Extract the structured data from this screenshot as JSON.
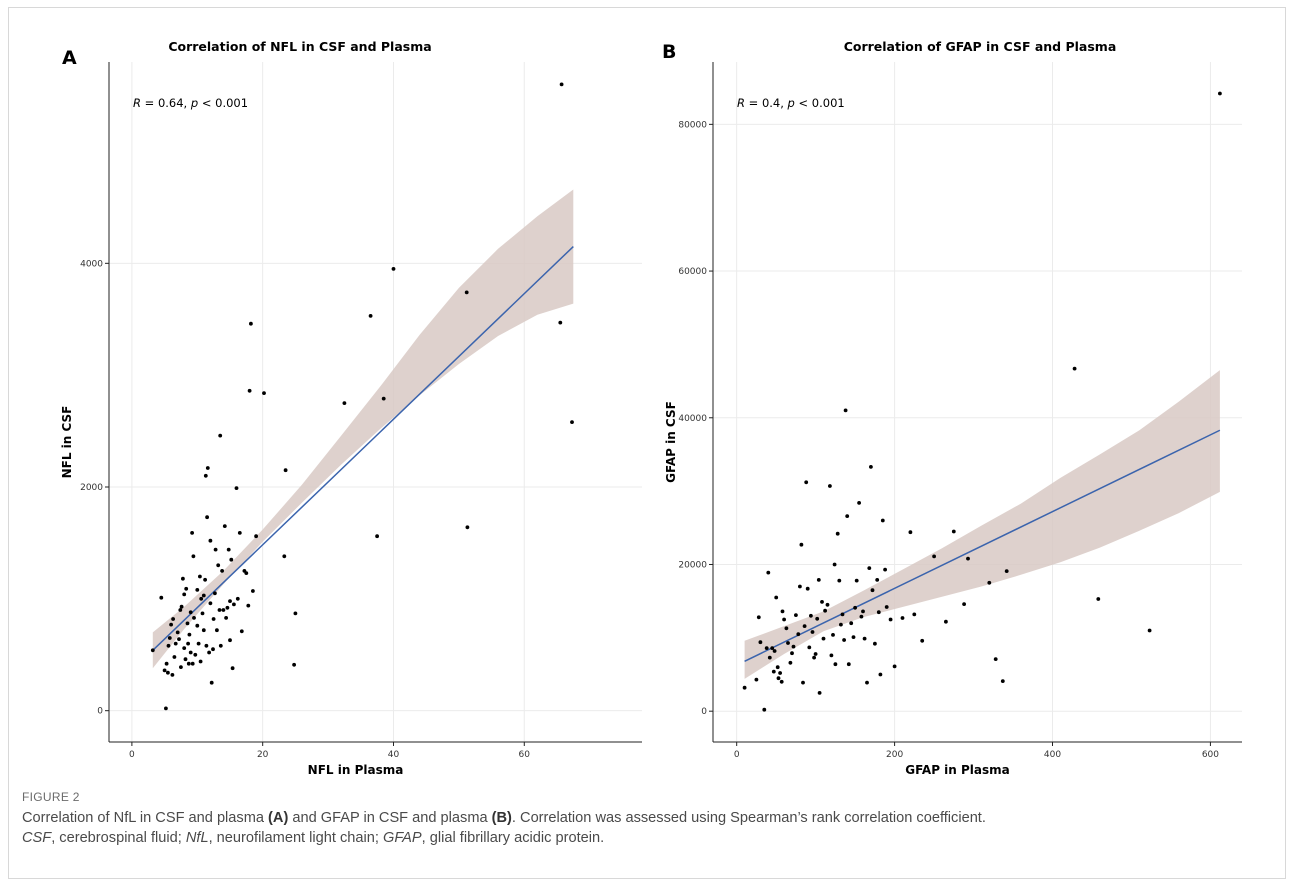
{
  "chart_data": [
    {
      "panel": "A",
      "type": "scatter",
      "title": "Correlation of NFL in CSF and Plasma",
      "xlabel": "NFL in Plasma",
      "ylabel": "NFL in CSF",
      "xlim": [
        -3.5,
        78
      ],
      "ylim": [
        -280,
        5800
      ],
      "xticks": [
        0,
        20,
        40,
        60
      ],
      "yticks": [
        0,
        2000,
        4000
      ],
      "annotation": {
        "R": "0.64",
        "p": "0.001"
      },
      "fit": {
        "x": [
          3.2,
          67.5
        ],
        "y": [
          540,
          4150
        ]
      },
      "band": {
        "x": [
          3.2,
          8,
          14,
          20,
          26,
          32,
          38,
          44,
          50,
          56,
          62,
          67.5
        ],
        "lower": [
          380,
          730,
          1130,
          1510,
          1860,
          2200,
          2520,
          2820,
          3100,
          3350,
          3540,
          3640
        ],
        "upper": [
          700,
          930,
          1250,
          1620,
          2020,
          2460,
          2900,
          3360,
          3780,
          4130,
          4420,
          4660
        ]
      },
      "points": [
        [
          3.2,
          540
        ],
        [
          4.5,
          1010
        ],
        [
          5,
          360
        ],
        [
          5.2,
          20
        ],
        [
          5.3,
          420
        ],
        [
          5.5,
          340
        ],
        [
          5.6,
          580
        ],
        [
          5.8,
          650
        ],
        [
          6,
          770
        ],
        [
          6.2,
          320
        ],
        [
          6.3,
          820
        ],
        [
          6.5,
          480
        ],
        [
          6.7,
          600
        ],
        [
          7,
          700
        ],
        [
          7.2,
          640
        ],
        [
          7.4,
          900
        ],
        [
          7.5,
          390
        ],
        [
          7.6,
          930
        ],
        [
          7.8,
          1180
        ],
        [
          8,
          560
        ],
        [
          8,
          1040
        ],
        [
          8.2,
          460
        ],
        [
          8.3,
          1090
        ],
        [
          8.5,
          780
        ],
        [
          8.6,
          600
        ],
        [
          8.7,
          420
        ],
        [
          8.8,
          680
        ],
        [
          9,
          520
        ],
        [
          9,
          880
        ],
        [
          9.2,
          1590
        ],
        [
          9.3,
          420
        ],
        [
          9.4,
          1380
        ],
        [
          9.5,
          830
        ],
        [
          9.7,
          500
        ],
        [
          10,
          760
        ],
        [
          10,
          1080
        ],
        [
          10.2,
          600
        ],
        [
          10.4,
          1200
        ],
        [
          10.5,
          440
        ],
        [
          10.6,
          1000
        ],
        [
          10.8,
          870
        ],
        [
          11,
          720
        ],
        [
          11,
          1030
        ],
        [
          11.2,
          1170
        ],
        [
          11.3,
          2100
        ],
        [
          11.4,
          580
        ],
        [
          11.5,
          1730
        ],
        [
          11.6,
          2170
        ],
        [
          11.8,
          520
        ],
        [
          12,
          960
        ],
        [
          12,
          1520
        ],
        [
          12.2,
          250
        ],
        [
          12.4,
          550
        ],
        [
          12.5,
          820
        ],
        [
          12.7,
          1050
        ],
        [
          12.8,
          1440
        ],
        [
          13,
          720
        ],
        [
          13.2,
          1300
        ],
        [
          13.4,
          900
        ],
        [
          13.5,
          2460
        ],
        [
          13.6,
          580
        ],
        [
          13.8,
          1250
        ],
        [
          14,
          900
        ],
        [
          14.2,
          1650
        ],
        [
          14.4,
          830
        ],
        [
          14.6,
          920
        ],
        [
          14.8,
          1440
        ],
        [
          15,
          980
        ],
        [
          15,
          630
        ],
        [
          15.2,
          1350
        ],
        [
          15.4,
          380
        ],
        [
          15.6,
          950
        ],
        [
          16,
          1990
        ],
        [
          16.2,
          1000
        ],
        [
          16.5,
          1590
        ],
        [
          16.8,
          710
        ],
        [
          17.2,
          1250
        ],
        [
          17.5,
          1230
        ],
        [
          17.8,
          940
        ],
        [
          18,
          2860
        ],
        [
          18.2,
          3460
        ],
        [
          18.5,
          1070
        ],
        [
          19,
          1560
        ],
        [
          20.2,
          2840
        ],
        [
          23.3,
          1380
        ],
        [
          23.5,
          2150
        ],
        [
          24.8,
          410
        ],
        [
          25,
          870
        ],
        [
          32.5,
          2750
        ],
        [
          36.5,
          3530
        ],
        [
          37.5,
          1560
        ],
        [
          38.5,
          2790
        ],
        [
          40,
          3950
        ],
        [
          51.2,
          3740
        ],
        [
          51.3,
          1640
        ],
        [
          65.5,
          3470
        ],
        [
          65.7,
          5600
        ],
        [
          67.3,
          2580
        ]
      ]
    },
    {
      "panel": "B",
      "type": "scatter",
      "title": "Correlation of GFAP in CSF and Plasma",
      "xlabel": "GFAP in Plasma",
      "ylabel": "GFAP in CSF",
      "xlim": [
        -30,
        640
      ],
      "ylim": [
        -4200,
        88500
      ],
      "xticks": [
        0,
        200,
        400,
        600
      ],
      "yticks": [
        0,
        20000,
        40000,
        60000,
        80000
      ],
      "annotation": {
        "R": "0.4",
        "p": "0.001"
      },
      "fit": {
        "x": [
          10,
          612
        ],
        "y": [
          6800,
          38300
        ]
      },
      "band": {
        "x": [
          10,
          60,
          110,
          160,
          210,
          260,
          310,
          360,
          410,
          460,
          510,
          560,
          612
        ],
        "lower": [
          4400,
          7800,
          10900,
          12800,
          14200,
          15600,
          17000,
          18600,
          20300,
          22300,
          24600,
          27000,
          29900
        ],
        "upper": [
          9600,
          11600,
          13600,
          16400,
          19300,
          22200,
          25300,
          28300,
          31800,
          35000,
          38300,
          42200,
          46500
        ]
      },
      "points": [
        [
          10,
          3200
        ],
        [
          25,
          4300
        ],
        [
          28,
          12800
        ],
        [
          30,
          9400
        ],
        [
          35,
          200
        ],
        [
          38,
          8600
        ],
        [
          40,
          18900
        ],
        [
          42,
          7300
        ],
        [
          45,
          8600
        ],
        [
          47,
          5400
        ],
        [
          48,
          8200
        ],
        [
          50,
          15500
        ],
        [
          52,
          6000
        ],
        [
          53,
          4500
        ],
        [
          55,
          5200
        ],
        [
          57,
          4000
        ],
        [
          58,
          13600
        ],
        [
          60,
          12500
        ],
        [
          63,
          11300
        ],
        [
          65,
          9300
        ],
        [
          68,
          6600
        ],
        [
          70,
          7900
        ],
        [
          72,
          8800
        ],
        [
          75,
          13100
        ],
        [
          78,
          10500
        ],
        [
          80,
          17000
        ],
        [
          82,
          22700
        ],
        [
          84,
          3900
        ],
        [
          86,
          11600
        ],
        [
          88,
          31200
        ],
        [
          90,
          16700
        ],
        [
          92,
          8700
        ],
        [
          94,
          13000
        ],
        [
          96,
          10800
        ],
        [
          98,
          7300
        ],
        [
          100,
          7800
        ],
        [
          102,
          12600
        ],
        [
          104,
          17900
        ],
        [
          105,
          2500
        ],
        [
          108,
          14900
        ],
        [
          110,
          9900
        ],
        [
          112,
          13700
        ],
        [
          115,
          14500
        ],
        [
          118,
          30700
        ],
        [
          120,
          7600
        ],
        [
          122,
          10400
        ],
        [
          124,
          20000
        ],
        [
          125,
          6400
        ],
        [
          128,
          24200
        ],
        [
          130,
          17800
        ],
        [
          132,
          11800
        ],
        [
          134,
          13200
        ],
        [
          136,
          9700
        ],
        [
          138,
          41000
        ],
        [
          140,
          26600
        ],
        [
          142,
          6400
        ],
        [
          145,
          12000
        ],
        [
          148,
          10100
        ],
        [
          150,
          14100
        ],
        [
          152,
          17800
        ],
        [
          155,
          28400
        ],
        [
          158,
          12900
        ],
        [
          160,
          13600
        ],
        [
          162,
          9900
        ],
        [
          165,
          3900
        ],
        [
          168,
          19500
        ],
        [
          170,
          33300
        ],
        [
          172,
          16500
        ],
        [
          175,
          9200
        ],
        [
          178,
          17900
        ],
        [
          180,
          13500
        ],
        [
          182,
          5000
        ],
        [
          185,
          26000
        ],
        [
          188,
          19300
        ],
        [
          190,
          14200
        ],
        [
          195,
          12500
        ],
        [
          200,
          6100
        ],
        [
          210,
          12700
        ],
        [
          220,
          24400
        ],
        [
          225,
          13200
        ],
        [
          235,
          9600
        ],
        [
          250,
          21100
        ],
        [
          265,
          12200
        ],
        [
          275,
          24500
        ],
        [
          288,
          14600
        ],
        [
          293,
          20800
        ],
        [
          320,
          17500
        ],
        [
          328,
          7100
        ],
        [
          337,
          4100
        ],
        [
          342,
          19100
        ],
        [
          428,
          46700
        ],
        [
          458,
          15300
        ],
        [
          523,
          11000
        ],
        [
          612,
          84200
        ]
      ]
    }
  ],
  "panel_letters": [
    "A",
    "B"
  ],
  "figure_label": "FIGURE 2",
  "caption": {
    "line1_a": "Correlation of NfL in CSF and plasma ",
    "line1_b": "(A)",
    "line1_c": " and GFAP in CSF and plasma ",
    "line1_d": "(B)",
    "line1_e": ". Correlation was assessed using Spearman’s rank correlation coefficient.",
    "abbr1": "CSF",
    "def1": ", cerebrospinal fluid; ",
    "abbr2": "NfL",
    "def2": ", neurofilament light chain; ",
    "abbr3": "GFAP",
    "def3": ", glial fibrillary acidic protein."
  },
  "colors": {
    "fit_line": "#3b64ad",
    "band": "#d8c9c4",
    "points": "#000000",
    "grid": "#ebebeb",
    "axis": "#222222"
  }
}
